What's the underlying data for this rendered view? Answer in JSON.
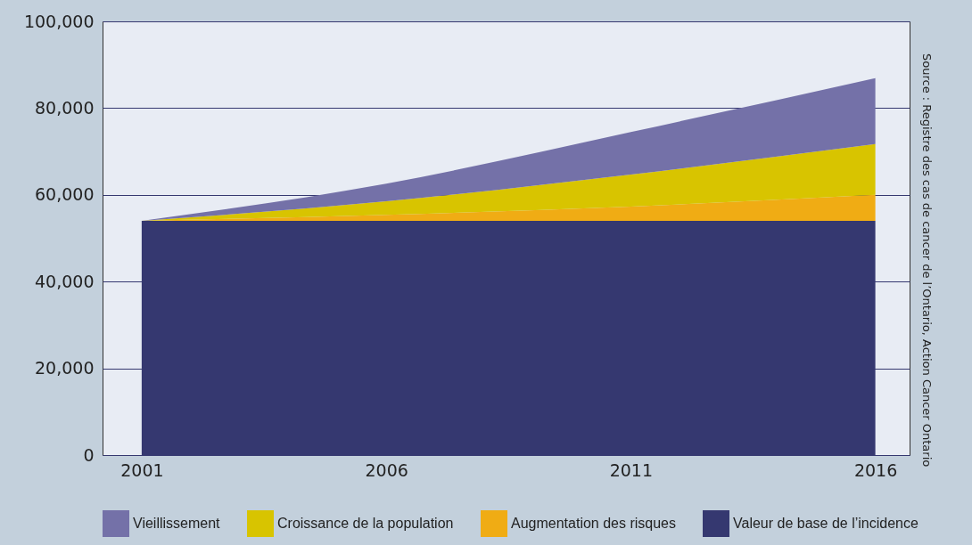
{
  "chart_data": {
    "type": "area",
    "stacked": true,
    "x": [
      2001,
      2006,
      2011,
      2016
    ],
    "series": [
      {
        "name": "Valeur de base de l’incidence",
        "color": "#353870",
        "values": [
          54000,
          54000,
          54000,
          54000
        ]
      },
      {
        "name": "Augmentation des risques",
        "color": "#f0ac14",
        "values": [
          0,
          1400,
          3300,
          6000
        ]
      },
      {
        "name": "Croissance de la population",
        "color": "#d8c400",
        "values": [
          0,
          3100,
          7400,
          11700
        ]
      },
      {
        "name": "Vieillissement",
        "color": "#7471a8",
        "values": [
          0,
          4100,
          9800,
          15200
        ]
      }
    ],
    "xlim": [
      2000.2,
      2016.7
    ],
    "xticks": [
      2001,
      2006,
      2011,
      2016
    ],
    "ylim": [
      0,
      100000
    ],
    "yticks": [
      0,
      {
        "value": 20000,
        "label": "20,000"
      },
      {
        "value": 40000,
        "label": "40,000"
      },
      {
        "value": 60000,
        "label": "60,000"
      },
      {
        "value": 80000,
        "label": "80,000"
      },
      {
        "value": 100000,
        "label": "100,000"
      }
    ],
    "grid": "y",
    "legend": "bottom",
    "annotations": [
      "Source : Registre des cas de cancer de l’Ontario, Action Cancer Ontario"
    ]
  }
}
